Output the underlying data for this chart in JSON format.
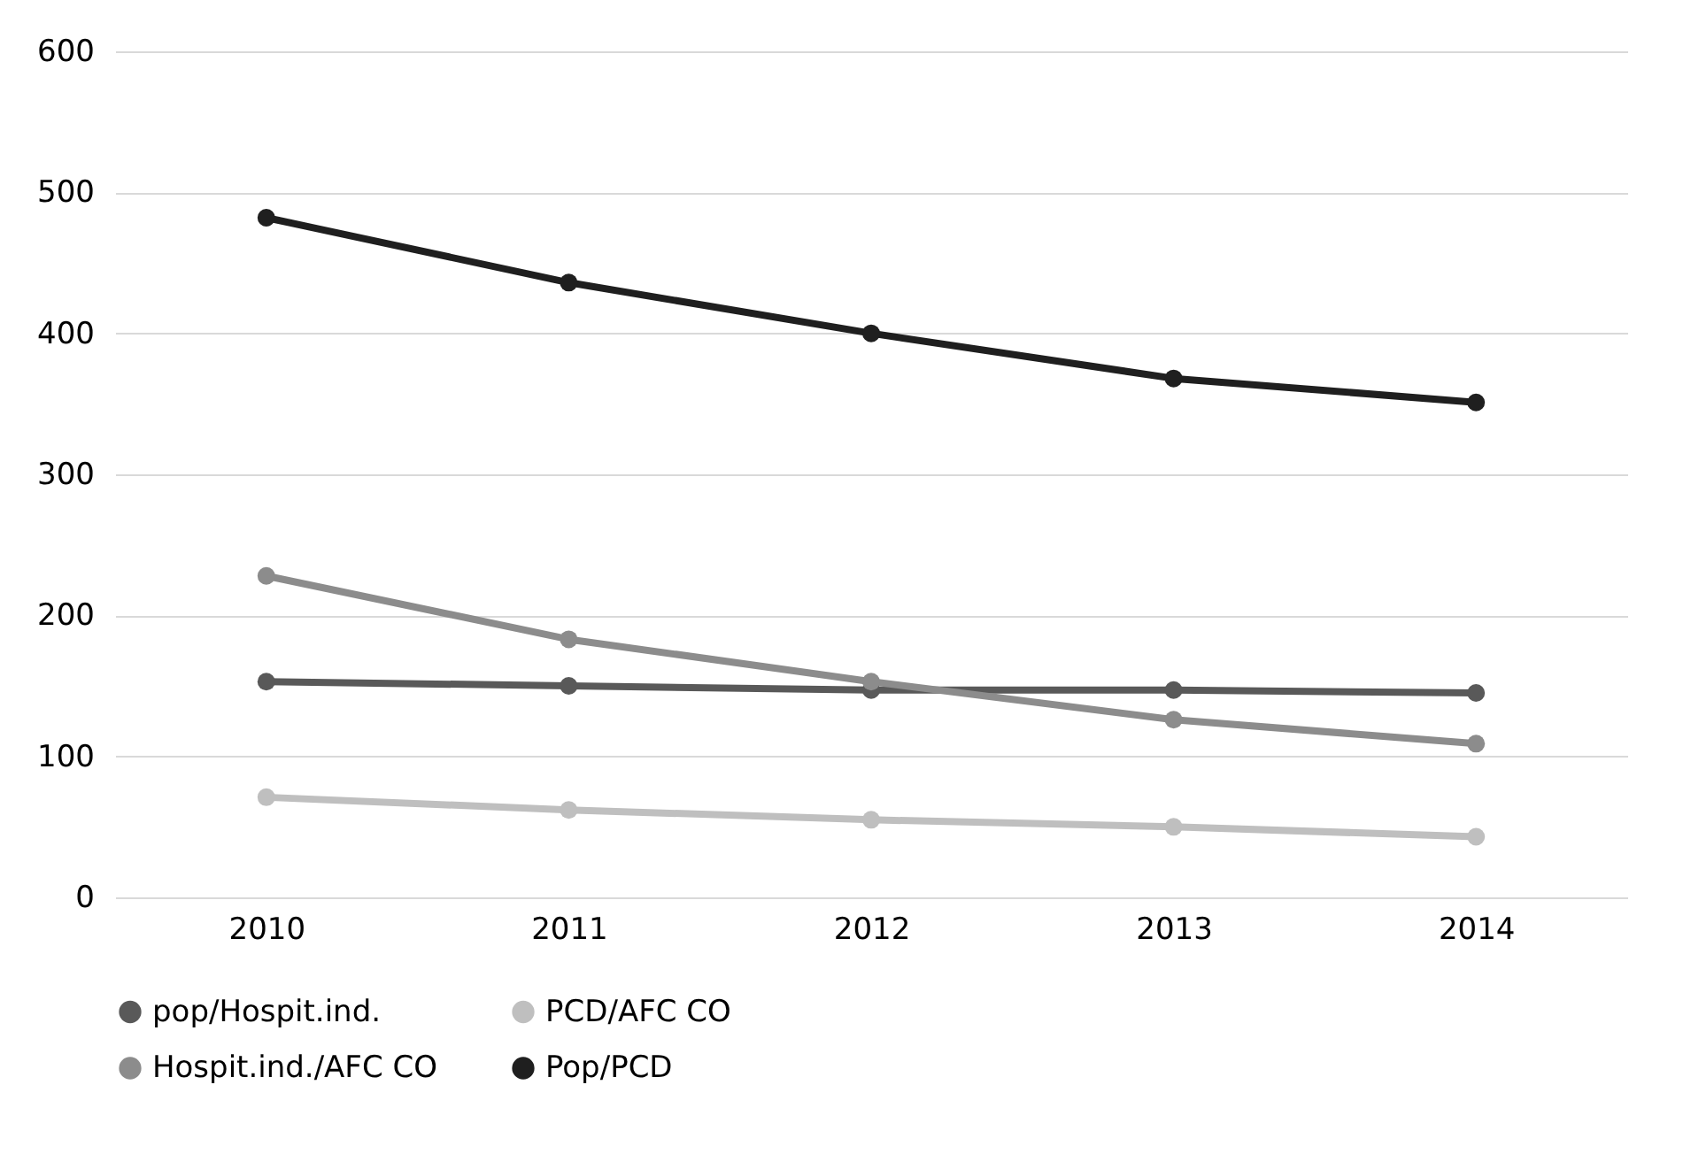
{
  "chart_data": {
    "type": "line",
    "categories": [
      "2010",
      "2011",
      "2012",
      "2013",
      "2014"
    ],
    "series": [
      {
        "name": "pop/Hospit.ind.",
        "color": "#595959",
        "values": [
          153,
          150,
          147,
          147,
          145
        ]
      },
      {
        "name": "PCD/AFC CO",
        "color": "#bfbfbf",
        "values": [
          71,
          62,
          55,
          50,
          43
        ]
      },
      {
        "name": "Hospit.ind./AFC CO",
        "color": "#8c8c8c",
        "values": [
          228,
          183,
          153,
          126,
          109
        ]
      },
      {
        "name": "Pop/PCD",
        "color": "#1f1f1f",
        "values": [
          482,
          436,
          400,
          368,
          351
        ]
      }
    ],
    "ylim": [
      0,
      600
    ],
    "yticks": [
      0,
      100,
      200,
      300,
      400,
      500,
      600
    ],
    "grid": "y",
    "legend": "bottom",
    "marker": "circle",
    "line_style": "solid"
  }
}
